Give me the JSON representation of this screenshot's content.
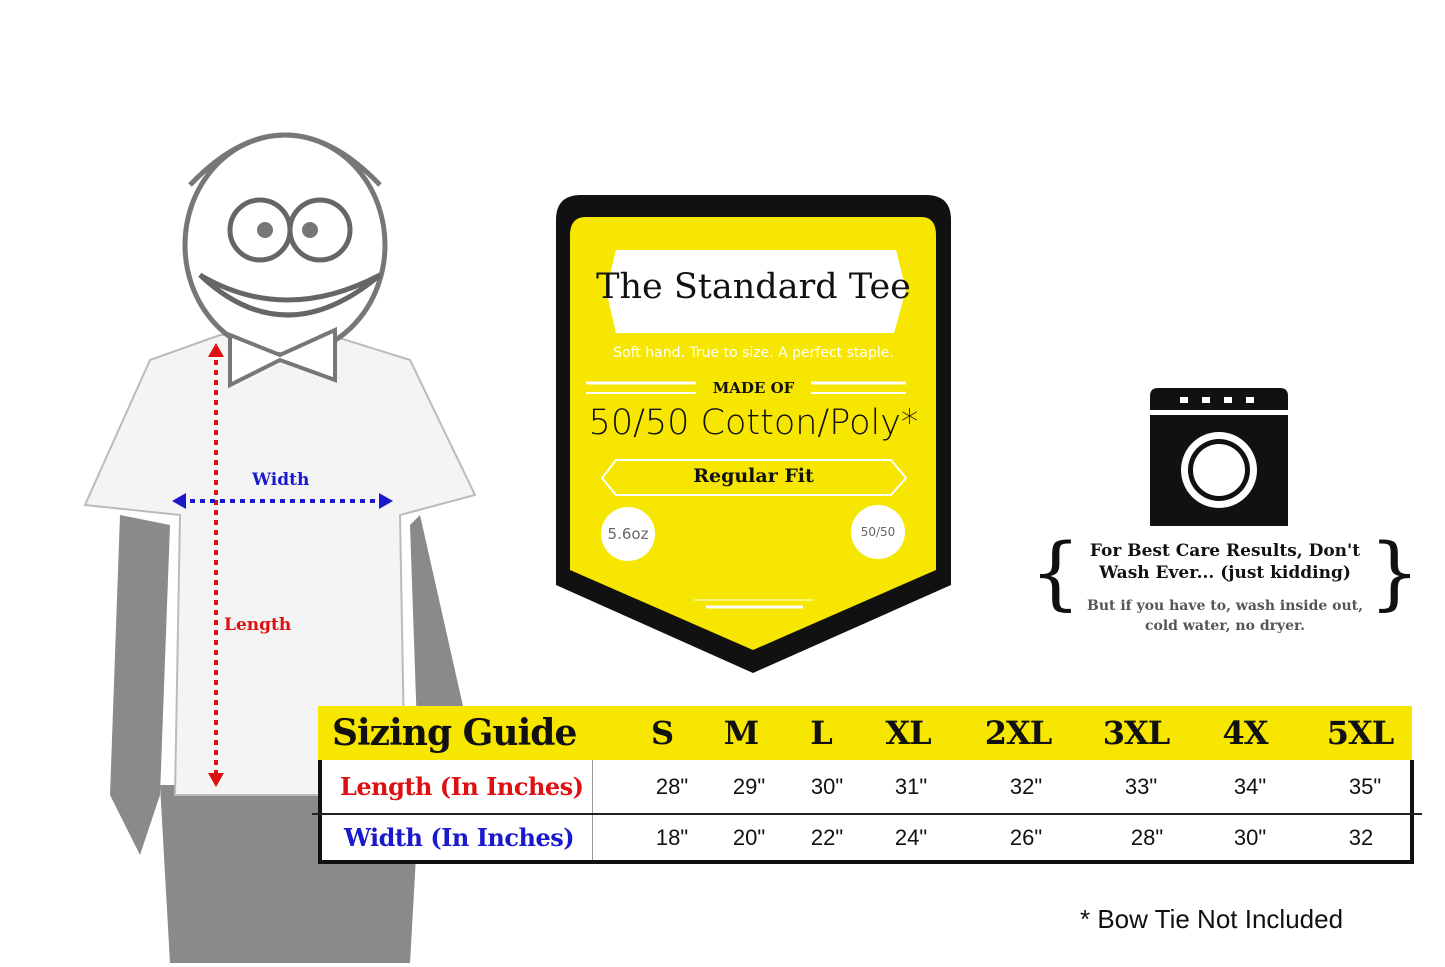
{
  "figure": {
    "width_label": "Width",
    "length_label": "Length",
    "colors": {
      "width": "#1a1acc",
      "length": "#dd1111"
    }
  },
  "tag": {
    "title": "The Standard Tee",
    "tagline": "Soft hand. True to size. A perfect staple.",
    "made_of_label": "MADE OF",
    "material": "50/50 Cotton/Poly*",
    "fit": "Regular Fit",
    "weight_badge": "5.6oz",
    "blend_badge": "50/50",
    "colors": {
      "fill": "#f7e600",
      "border": "#111111"
    }
  },
  "care": {
    "icon": "washing-machine-icon",
    "headline": "For Best Care Results, Don't Wash Ever... (just kidding)",
    "detail": "But if you have to, wash inside out, cold water, no dryer."
  },
  "sizing_guide": {
    "title": "Sizing Guide",
    "sizes": [
      "S",
      "M",
      "L",
      "XL",
      "2XL",
      "3XL",
      "4X",
      "5XL"
    ],
    "rows": [
      {
        "label": "Length (In Inches)",
        "color": "#dd1111",
        "values": [
          "28\"",
          "29\"",
          "30\"",
          "31\"",
          "32\"",
          "33\"",
          "34\"",
          "35\""
        ]
      },
      {
        "label": "Width (In Inches)",
        "color": "#1a1acc",
        "values": [
          "18\"",
          "20\"",
          "22\"",
          "24\"",
          "26\"",
          "28\"",
          "30\"",
          "32"
        ]
      }
    ]
  },
  "footnote": "* Bow Tie Not Included"
}
